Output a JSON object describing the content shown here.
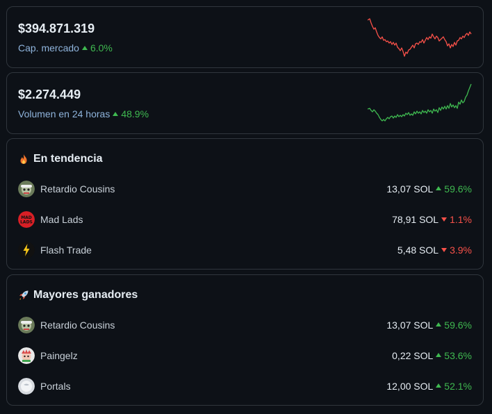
{
  "colors": {
    "up": "#3fb950",
    "down": "#f85149",
    "sub_text": "#8fb4dc",
    "border": "#30363d",
    "background": "#0d1117"
  },
  "market_cap": {
    "value": "$394.871.319",
    "label": "Cap. mercado",
    "change": "6.0%",
    "direction": "up",
    "sparkline_color": "#f85149"
  },
  "volume": {
    "value": "$2.274.449",
    "label": "Volumen en 24 horas",
    "change": "48.9%",
    "direction": "up",
    "sparkline_color": "#3fb950"
  },
  "trending": {
    "title": "En tendencia",
    "icon": "fire-icon",
    "items": [
      {
        "name": "Retardio Cousins",
        "price": "13,07 SOL",
        "change": "59.6%",
        "direction": "up",
        "icon": "retardio-avatar"
      },
      {
        "name": "Mad Lads",
        "price": "78,91 SOL",
        "change": "1.1%",
        "direction": "down",
        "icon": "mad-lads-avatar"
      },
      {
        "name": "Flash Trade",
        "price": "5,48 SOL",
        "change": "3.9%",
        "direction": "down",
        "icon": "flash-trade-avatar"
      }
    ]
  },
  "top_gainers": {
    "title": "Mayores ganadores",
    "icon": "rocket-icon",
    "items": [
      {
        "name": "Retardio Cousins",
        "price": "13,07 SOL",
        "change": "59.6%",
        "direction": "up",
        "icon": "retardio-avatar"
      },
      {
        "name": "Paingelz",
        "price": "0,22 SOL",
        "change": "53.6%",
        "direction": "up",
        "icon": "paingelz-avatar"
      },
      {
        "name": "Portals",
        "price": "12,00 SOL",
        "change": "52.1%",
        "direction": "up",
        "icon": "portals-avatar"
      }
    ]
  }
}
